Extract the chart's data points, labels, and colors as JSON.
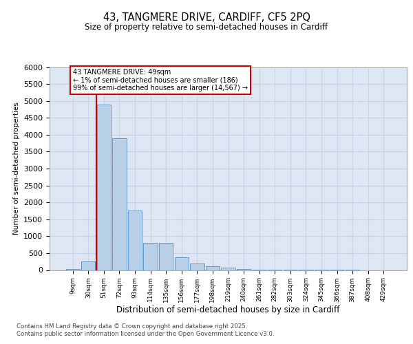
{
  "title_line1": "43, TANGMERE DRIVE, CARDIFF, CF5 2PQ",
  "title_line2": "Size of property relative to semi-detached houses in Cardiff",
  "xlabel": "Distribution of semi-detached houses by size in Cardiff",
  "ylabel": "Number of semi-detached properties",
  "categories": [
    "9sqm",
    "30sqm",
    "51sqm",
    "72sqm",
    "93sqm",
    "114sqm",
    "135sqm",
    "156sqm",
    "177sqm",
    "198sqm",
    "219sqm",
    "240sqm",
    "261sqm",
    "282sqm",
    "303sqm",
    "324sqm",
    "345sqm",
    "366sqm",
    "387sqm",
    "408sqm",
    "429sqm"
  ],
  "values": [
    25,
    250,
    4900,
    3900,
    1750,
    800,
    800,
    380,
    200,
    120,
    70,
    40,
    20,
    12,
    8,
    5,
    3,
    2,
    1,
    0,
    0
  ],
  "bar_color": "#b8cfe8",
  "bar_edge_color": "#6699cc",
  "vline_color": "#cc0000",
  "vline_x_index": 1.5,
  "annotation_text": "43 TANGMERE DRIVE: 49sqm\n← 1% of semi-detached houses are smaller (186)\n99% of semi-detached houses are larger (14,567) →",
  "annotation_box_facecolor": "white",
  "annotation_box_edgecolor": "#cc0000",
  "ylim": [
    0,
    6000
  ],
  "yticks": [
    0,
    500,
    1000,
    1500,
    2000,
    2500,
    3000,
    3500,
    4000,
    4500,
    5000,
    5500,
    6000
  ],
  "grid_color": "#c8d4e8",
  "plot_bg_color": "#dde6f2",
  "footer_line1": "Contains HM Land Registry data © Crown copyright and database right 2025.",
  "footer_line2": "Contains public sector information licensed under the Open Government Licence v3.0."
}
